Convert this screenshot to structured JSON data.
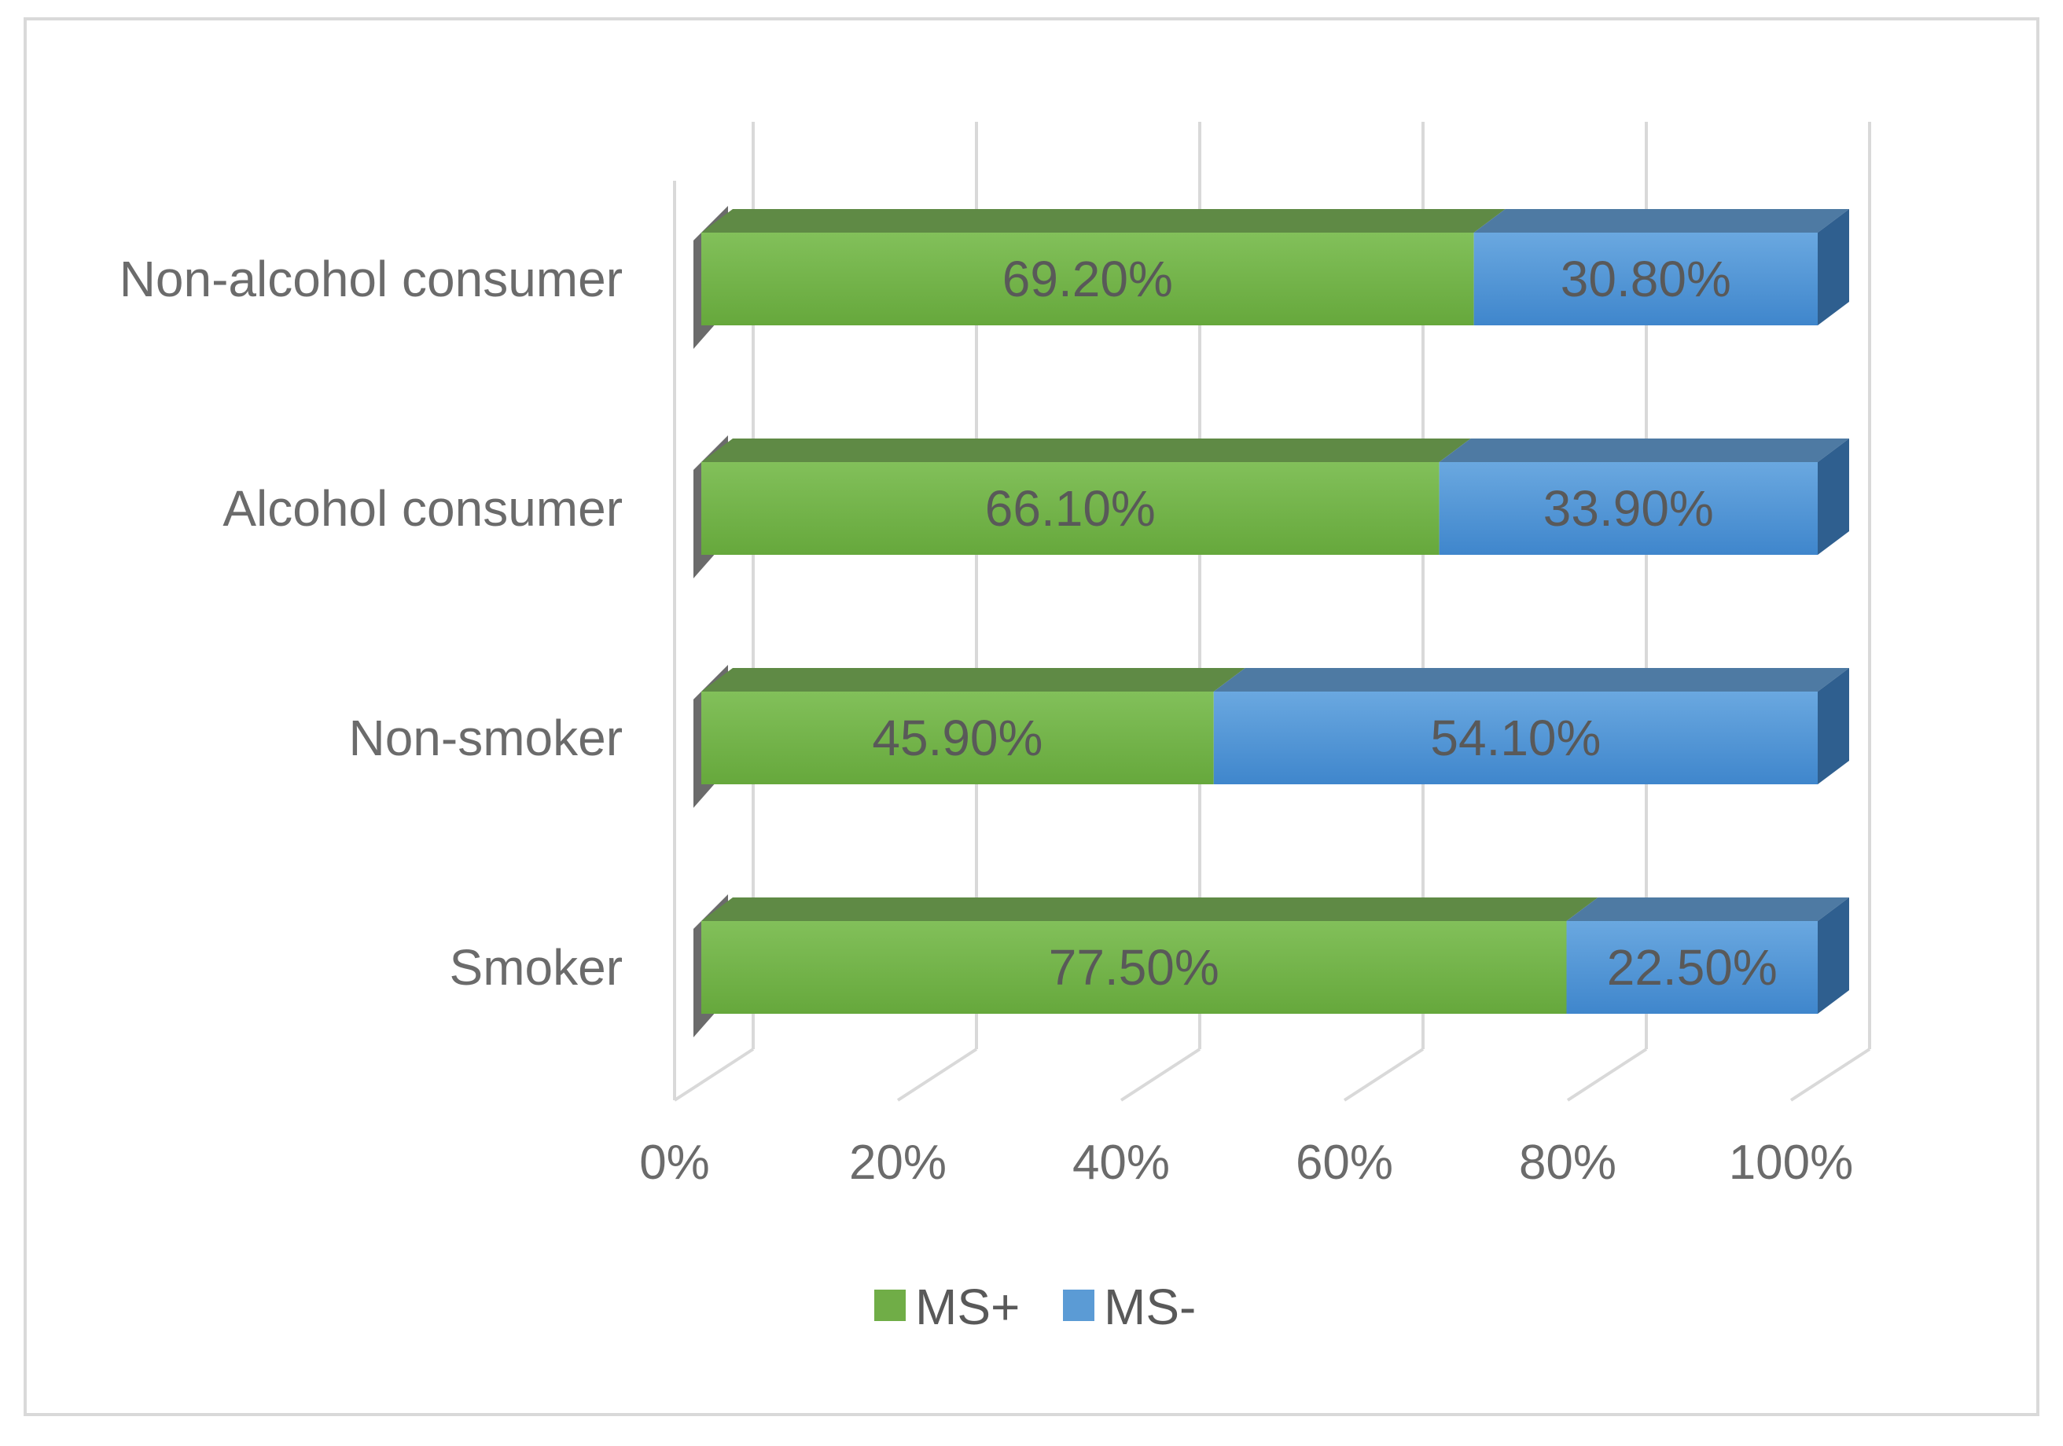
{
  "chart_data": {
    "type": "bar",
    "orientation": "horizontal",
    "stacked": "percent",
    "style": "3d",
    "categories": [
      "Smoker",
      "Non-smoker",
      "Alcohol consumer",
      "Non-alcohol consumer"
    ],
    "series": [
      {
        "name": "MS+",
        "values": [
          77.5,
          45.9,
          66.1,
          69.2
        ],
        "labels": [
          "77.50%",
          "45.90%",
          "66.10%",
          "69.20%"
        ],
        "color": "#70ad47"
      },
      {
        "name": "MS-",
        "values": [
          22.5,
          54.1,
          33.9,
          30.8
        ],
        "labels": [
          "22.50%",
          "54.10%",
          "33.90%",
          "30.80%"
        ],
        "color": "#5b9bd5"
      }
    ],
    "x_ticks": [
      "0%",
      "20%",
      "40%",
      "60%",
      "80%",
      "100%"
    ],
    "xlim": [
      0,
      100
    ],
    "grid": true,
    "legend": "bottom"
  }
}
